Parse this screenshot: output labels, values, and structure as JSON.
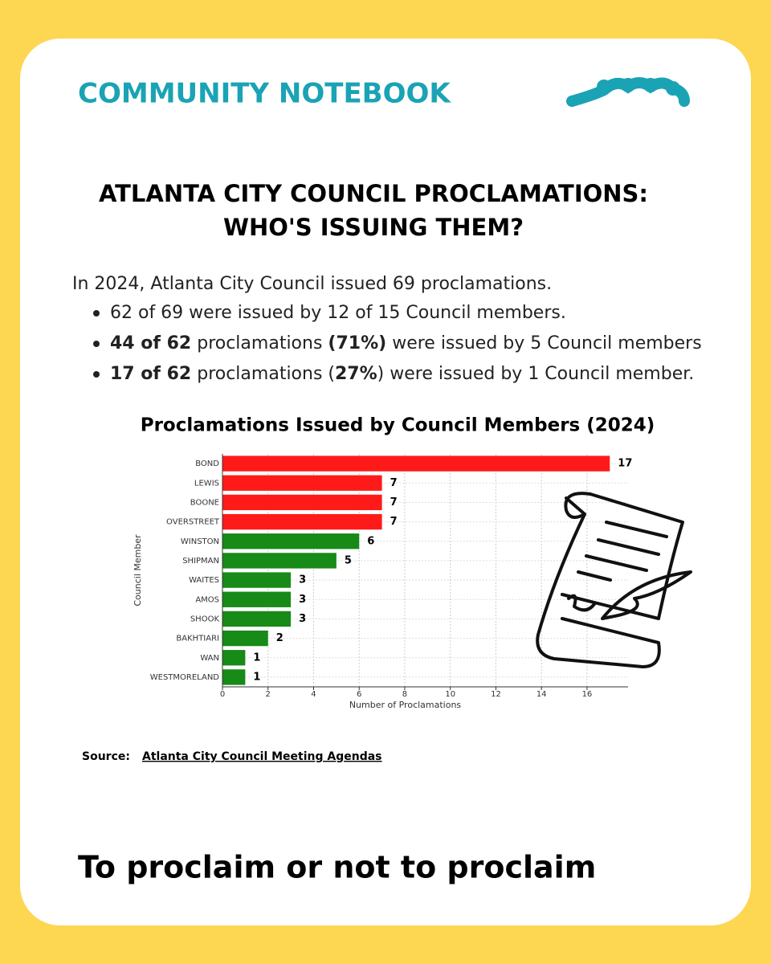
{
  "header": {
    "brand": "COMMUNITY NOTEBOOK"
  },
  "title": [
    "ATLANTA CITY COUNCIL PROCLAMATIONS:",
    "WHO'S ISSUING THEM?"
  ],
  "intro": "In 2024, Atlanta City Council issued 69 proclamations.",
  "bullets": [
    [
      {
        "text": "62 of 69 were issued by 12 of 15 Council members.",
        "bold": false
      }
    ],
    [
      {
        "text": "44 of 62",
        "bold": true
      },
      {
        "text": " proclamations ",
        "bold": false
      },
      {
        "text": "(71%)",
        "bold": true
      },
      {
        "text": " were issued by 5 Council members",
        "bold": false
      }
    ],
    [
      {
        "text": "17 of 62",
        "bold": true
      },
      {
        "text": " proclamations (",
        "bold": false
      },
      {
        "text": "27%",
        "bold": true
      },
      {
        "text": ") were issued by 1 Council member.",
        "bold": false
      }
    ]
  ],
  "chart_data": {
    "type": "hbar",
    "title": "Proclamations Issued by Council Members (2024)",
    "categories": [
      "BOND",
      "LEWIS",
      "BOONE",
      "OVERSTREET",
      "WINSTON",
      "SHIPMAN",
      "WAITES",
      "AMOS",
      "SHOOK",
      "BAKHTIARI",
      "WAN",
      "WESTMORELAND"
    ],
    "values": [
      17,
      7,
      7,
      7,
      6,
      5,
      3,
      3,
      3,
      2,
      1,
      1
    ],
    "colors": [
      "#ff1a1a",
      "#ff1a1a",
      "#ff1a1a",
      "#ff1a1a",
      "#178a17",
      "#178a17",
      "#178a17",
      "#178a17",
      "#178a17",
      "#178a17",
      "#178a17",
      "#178a17"
    ],
    "xlim": [
      0,
      17.8
    ],
    "xticks": [
      0,
      2,
      4,
      6,
      8,
      10,
      12,
      14,
      16
    ],
    "x_label": "Number of Proclamations",
    "y_label": "Council Member",
    "grid": true
  },
  "source": {
    "label": "Source:",
    "link": "Atlanta City Council Meeting Agendas"
  },
  "footer": "To proclaim or not to proclaim"
}
